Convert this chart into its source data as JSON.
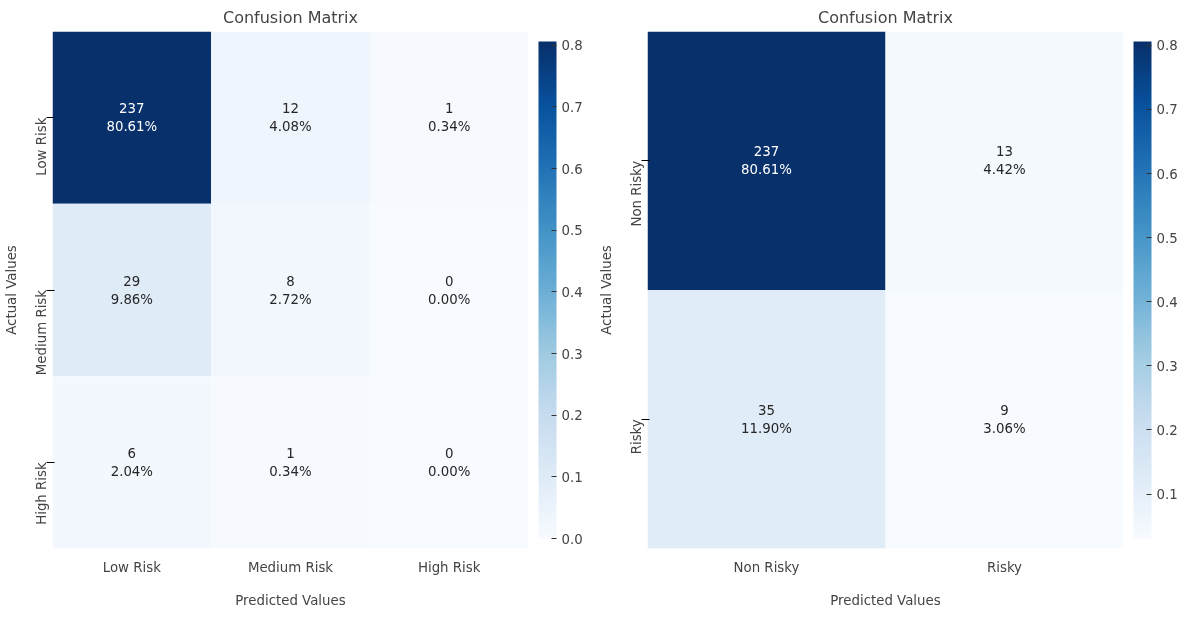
{
  "chart_data": [
    {
      "type": "heatmap",
      "title": "Confusion Matrix",
      "xlabel": "Predicted Values",
      "ylabel": "Actual Values",
      "categories": [
        "Low Risk",
        "Medium Risk",
        "High Risk"
      ],
      "y_categories": [
        "Low Risk",
        "Medium Risk",
        "High Risk"
      ],
      "cells": [
        [
          0.8061,
          0.0408,
          0.0034
        ],
        [
          0.0986,
          0.0272,
          0.0
        ],
        [
          0.0204,
          0.0034,
          0.0
        ]
      ],
      "cell_labels": [
        [
          "237\n80.61%",
          "12\n4.08%",
          "1\n0.34%"
        ],
        [
          "29\n9.86%",
          "8\n2.72%",
          "0\n0.00%"
        ],
        [
          "6\n2.04%",
          "1\n0.34%",
          "0\n0.00%"
        ]
      ],
      "clim": [
        0.0,
        0.8061
      ],
      "cticks": [
        {
          "value": 0,
          "label": "0.0"
        },
        0.1,
        0.2,
        0.3,
        0.4,
        0.5,
        0.6,
        0.7,
        0.8
      ],
      "grid": false
    },
    {
      "type": "heatmap",
      "title": "Confusion Matrix",
      "xlabel": "Predicted Values",
      "ylabel": "Actual Values",
      "categories": [
        "Non Risky",
        "Risky"
      ],
      "y_categories": [
        "Non Risky",
        "Risky"
      ],
      "cells": [
        [
          0.8061,
          0.0442
        ],
        [
          0.119,
          0.0306
        ]
      ],
      "cell_labels": [
        [
          "237\n80.61%",
          "13\n4.42%"
        ],
        [
          "35\n11.90%",
          "9\n3.06%"
        ]
      ],
      "clim": [
        0.0306,
        0.8061
      ],
      "cticks": [
        0.1,
        0.2,
        0.3,
        0.4,
        0.5,
        0.6,
        0.7,
        0.8
      ],
      "grid": false
    }
  ]
}
